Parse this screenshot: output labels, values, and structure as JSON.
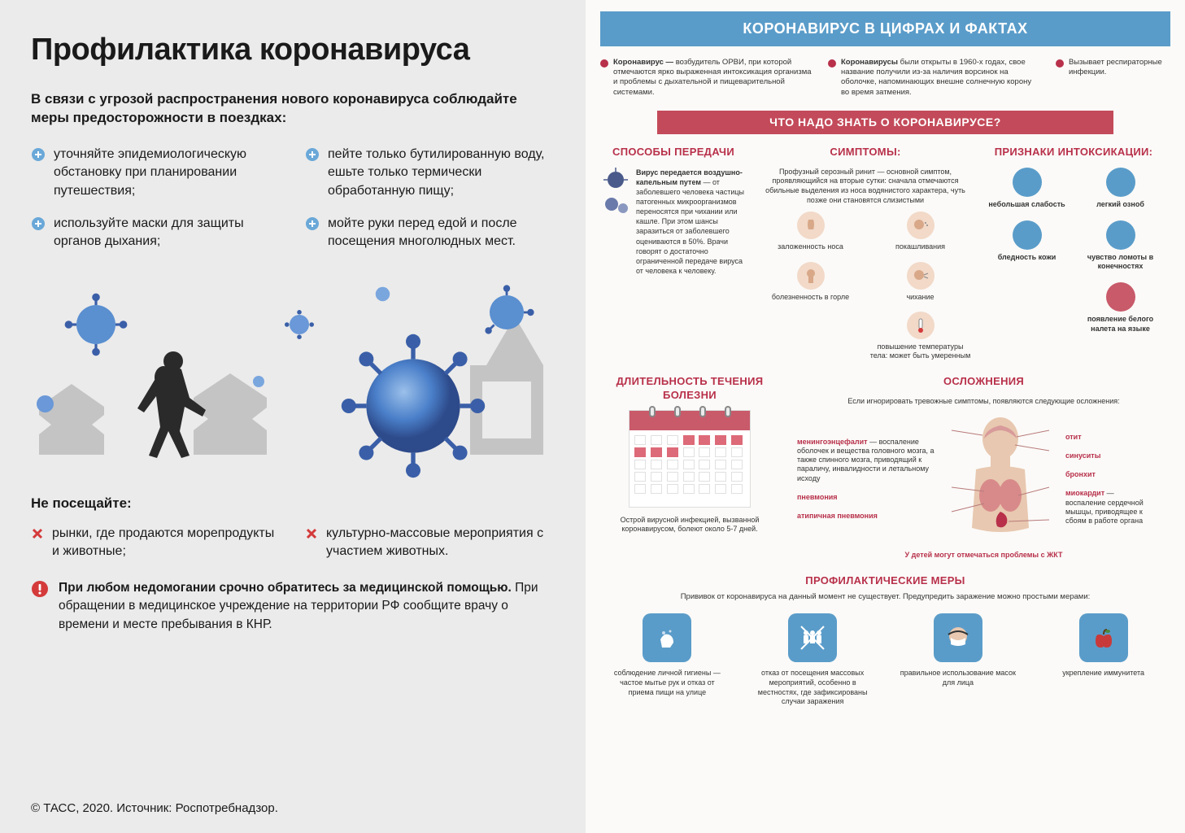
{
  "left": {
    "title": "Профилактика коронавируса",
    "intro": "В связи с угрозой распространения нового коронавируса соблюдайте меры предосторожности в поездках:",
    "tips": [
      "уточняйте эпидемиологическую обстановку при планировании путешествия;",
      "пейте только бутилированную воду, ешьте только термически обработанную пищу;",
      "используйте маски для защиты органов дыхания;",
      "мойте руки перед едой и после посещения многолюдных мест."
    ],
    "dontTitle": "Не посещайте:",
    "donts": [
      "рынки, где продаются морепродукты и животные;",
      "культурно-массовые мероприятия с участием животных."
    ],
    "warningBold": "При любом недомогании срочно обратитесь за медицинской помощью.",
    "warningRest": " При обращении в медицинское учреждение на территории РФ сообщите врачу о времени и месте пребывания в КНР.",
    "source": "© ТАСС, 2020. Источник: Роспотребнадзор.",
    "colors": {
      "bulletPlus": "#6aa8d8",
      "bulletX": "#d43a3a",
      "warnIcon": "#d43a3a",
      "virusFill": "#4a7fc9",
      "virusDark": "#2d4a8a",
      "buildingFill": "#c4c4c4",
      "personFill": "#2a2a2a"
    }
  },
  "right": {
    "bannerTitle": "КОРОНАВИРУС В ЦИФРАХ И ФАКТАХ",
    "facts": [
      {
        "bold": "Коронавирус —",
        "rest": " возбудитель ОРВИ, при которой отмечаются ярко выраженная интоксикация организма и проблемы с дыхательной и пищеварительной системами."
      },
      {
        "bold": "Коронавирусы",
        "rest": " были открыты в 1960-х годах, свое название получили из-за наличия ворсинок на оболочке, напоминающих внешне солнечную корону во время затмения."
      },
      {
        "bold": "",
        "rest": "Вызывает респираторные инфекции."
      }
    ],
    "subbanner": "ЧТО НАДО ЗНАТЬ О КОРОНАВИРУСЕ?",
    "transmission": {
      "title": "СПОСОБЫ ПЕРЕДАЧИ",
      "bold": "Вирус передается воздушно-капельным путем",
      "rest": " — от заболевшего человека частицы патогенных микроорганизмов переносятся при чихании или кашле. При этом шансы заразиться от заболевшего оцениваются в 50%. Врачи говорят о достаточно ограниченной передаче вируса от человека к человеку."
    },
    "symptoms": {
      "title": "СИМПТОМЫ:",
      "intro": "Профузный серозный ринит — основной симптом, проявляющийся на вторые сутки: сначала отмечаются обильные выделения из носа водянистого характера, чуть позже они становятся слизистыми",
      "left": [
        "заложенность носа",
        "болезненность в горле"
      ],
      "right": [
        "покашливания",
        "чихание",
        "повышение температуры тела: может быть умеренным"
      ]
    },
    "intox": {
      "title": "ПРИЗНАКИ ИНТОКСИКАЦИИ:",
      "left": [
        "небольшая слабость",
        "бледность кожи"
      ],
      "right": [
        "легкий озноб",
        "чувство ломоты в конечностях",
        "появление белого налета на языке"
      ]
    },
    "duration": {
      "title": "ДЛИТЕЛЬНОСТЬ ТЕЧЕНИЯ БОЛЕЗНИ",
      "text": "Острой вирусной инфекцией, вызванной коронавирусом, болеют около 5-7 дней.",
      "daysHighlighted": 7,
      "calCols": 7,
      "calRows": 5
    },
    "complications": {
      "title": "ОСЛОЖНЕНИЯ",
      "intro": "Если игнорировать тревожные симптомы, появляются следующие осложнения:",
      "left": [
        {
          "bold": "менингоэнцефалит",
          "rest": " — воспаление оболочек и вещества головного мозга, а также спинного мозга, приводящий к параличу, инвалидности и летальному исходу"
        },
        {
          "bold": "пневмония",
          "rest": ""
        },
        {
          "bold": "атипичная пневмония",
          "rest": ""
        }
      ],
      "right": [
        {
          "bold": "отит",
          "rest": ""
        },
        {
          "bold": "синуситы",
          "rest": ""
        },
        {
          "bold": "бронхит",
          "rest": ""
        },
        {
          "bold": "миокардит",
          "rest": " — воспаление сердечной мышцы, приводящее к сбоям в работе органа"
        }
      ],
      "kidsNote": "У детей могут отмечаться проблемы с ЖКТ"
    },
    "prevent": {
      "title": "ПРОФИЛАКТИЧЕСКИЕ МЕРЫ",
      "intro": "Прививок от коронавируса на данный момент не существует. Предупредить заражение можно простыми мерами:",
      "items": [
        "соблюдение личной гигиены — частое мытье рук и отказ от приема пищи на улице",
        "отказ от посещения массовых мероприятий, особенно в местностях, где зафиксированы случаи заражения",
        "правильное использование масок для лица",
        "укрепление иммунитета"
      ]
    },
    "colors": {
      "banner": "#5a9cc9",
      "subbanner": "#c34a5a",
      "accent": "#b8304a",
      "iconBlue": "#5a9cc9",
      "iconSkin": "#f2d9c8",
      "iconRed": "#c85a6a",
      "calHighlight": "#dd6a78"
    }
  }
}
